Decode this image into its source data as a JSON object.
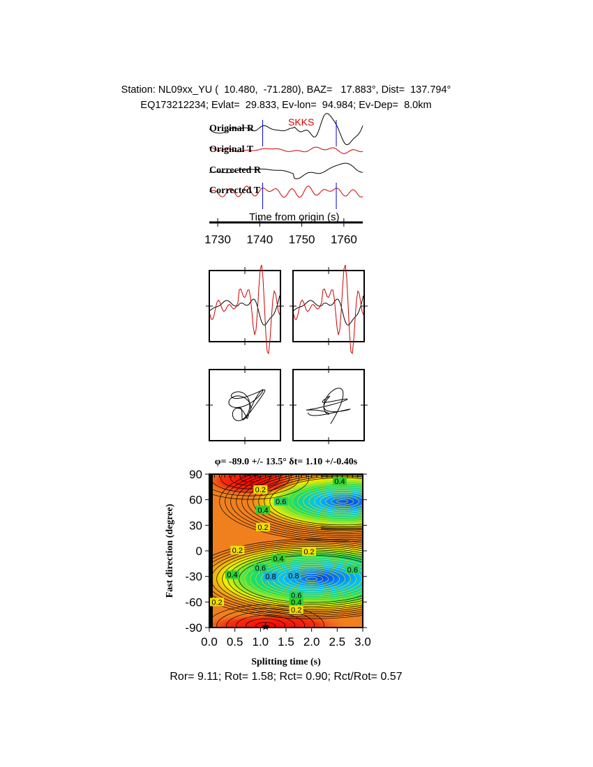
{
  "header": {
    "line1": "Station: NL09xx_YU (  10.480,  -71.280), BAZ=   17.883°, Dist=  137.794°",
    "line2": "EQ173212234; Evlat=  29.833, Ev-lon=  94.984; Ev-Dep=  8.0km"
  },
  "footer": "Ror= 9.11; Rot= 1.58; Rct= 0.90; Rct/Rot= 0.57",
  "chart_data": [
    {
      "type": "line",
      "panel": "waveforms",
      "phase_label": "SKKS",
      "traces": [
        {
          "name": "Original R",
          "color": "#000000"
        },
        {
          "name": "Original T",
          "color": "#cc0000"
        },
        {
          "name": "Corrected R",
          "color": "#000000"
        },
        {
          "name": "Corrected T",
          "color": "#cc0000"
        }
      ],
      "xlabel": "Time from origin (s)",
      "xticks": [
        1730,
        1740,
        1750,
        1760
      ],
      "xlim": [
        1728,
        1764.5
      ],
      "window": [
        1740.7,
        1758.2
      ],
      "window_color": "#0000cc"
    },
    {
      "type": "line",
      "panel": "particle-motion-and-waveform-comparison",
      "colors": [
        "#000000",
        "#cc0000"
      ]
    },
    {
      "type": "heatmap",
      "panel": "splitting-grid-search",
      "title": "φ= -89.0 +/- 13.5° δt= 1.10 +/-0.40s",
      "xlabel": "Splitting time (s)",
      "ylabel": "Fast direction (degree)",
      "xlim": [
        0,
        3
      ],
      "ylim": [
        -90,
        90
      ],
      "xticks": [
        "0.0",
        "0.5",
        "1.0",
        "1.5",
        "2.0",
        "2.5",
        "3.0"
      ],
      "yticks": [
        "90",
        "60",
        "30",
        "0",
        "-30",
        "-60",
        "-90"
      ],
      "best": {
        "dt": 1.1,
        "phi": -89.0
      },
      "contour_labels": [
        {
          "text": "0.2",
          "x": 1.0,
          "y": 72
        },
        {
          "text": "0.6",
          "x": 1.4,
          "y": 58
        },
        {
          "text": "0.4",
          "x": 2.55,
          "y": 82
        },
        {
          "text": "0.4",
          "x": 1.05,
          "y": 48
        },
        {
          "text": "0.2",
          "x": 1.05,
          "y": 28
        },
        {
          "text": "0.2",
          "x": 0.55,
          "y": 1
        },
        {
          "text": "0.2",
          "x": 1.95,
          "y": -1
        },
        {
          "text": "0.4",
          "x": 1.35,
          "y": -9
        },
        {
          "text": "0.6",
          "x": 1.0,
          "y": -20
        },
        {
          "text": "0.6",
          "x": 2.8,
          "y": -22
        },
        {
          "text": "0.8",
          "x": 1.2,
          "y": -30
        },
        {
          "text": "0.8",
          "x": 1.65,
          "y": -29
        },
        {
          "text": "0.4",
          "x": 0.45,
          "y": -28
        },
        {
          "text": "0.2",
          "x": 0.15,
          "y": -60
        },
        {
          "text": "0.6",
          "x": 1.7,
          "y": -52
        },
        {
          "text": "0.4",
          "x": 1.7,
          "y": -60
        },
        {
          "text": "0.2",
          "x": 1.7,
          "y": -69
        }
      ]
    }
  ]
}
